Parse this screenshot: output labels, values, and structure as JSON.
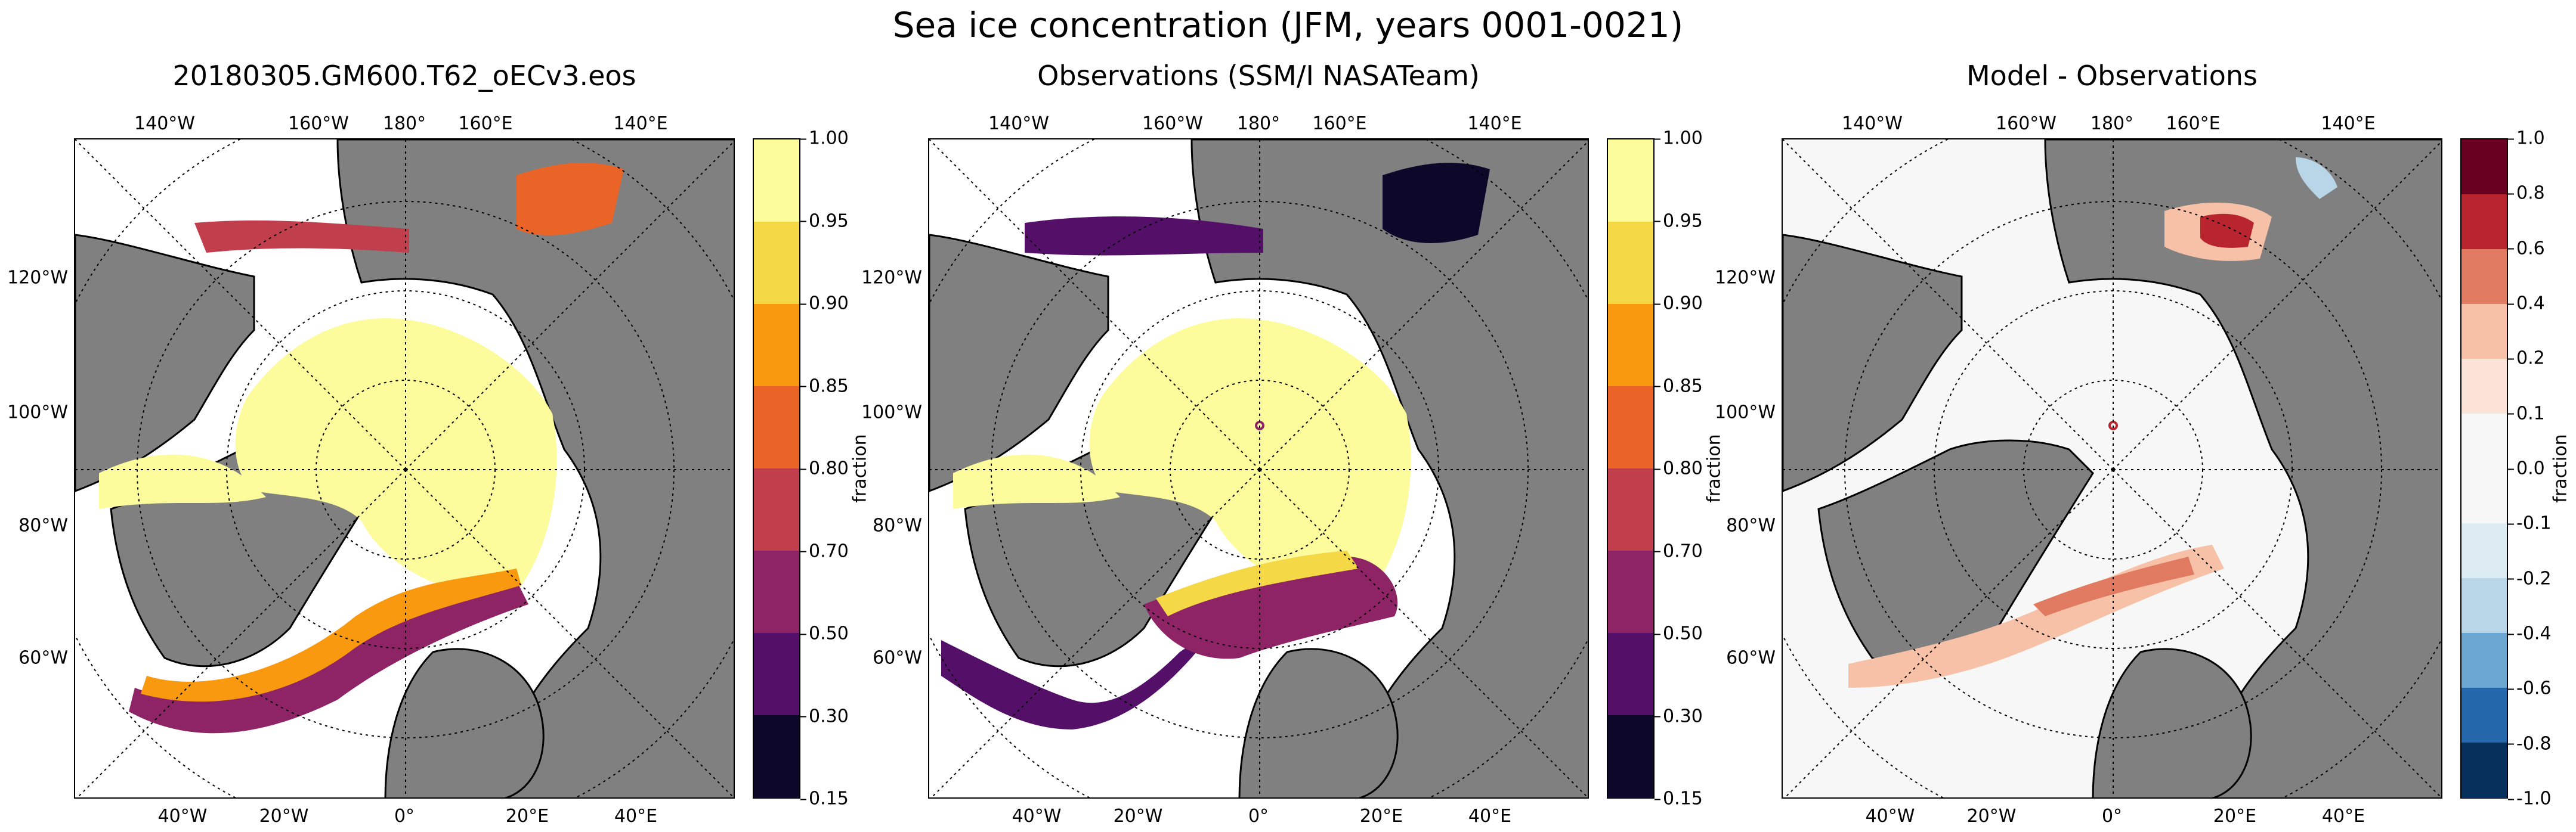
{
  "title": "Sea ice concentration (JFM, years 0001-0021)",
  "panels": [
    {
      "title": "20180305.GM600.T62_oECv3.eos",
      "colorbar_label": "fraction",
      "ticks": [
        "1.00",
        "0.95",
        "0.90",
        "0.85",
        "0.80",
        "0.70",
        "0.50",
        "0.30",
        "0.15"
      ],
      "colors": [
        "#fcfc9d",
        "#f4d846",
        "#f89910",
        "#ea6428",
        "#c13e4c",
        "#8e2365",
        "#541068",
        "#0d0829"
      ]
    },
    {
      "title": "Observations (SSM/I NASATeam)",
      "colorbar_label": "fraction",
      "ticks": [
        "1.00",
        "0.95",
        "0.90",
        "0.85",
        "0.80",
        "0.70",
        "0.50",
        "0.30",
        "0.15"
      ],
      "colors": [
        "#fcfc9d",
        "#f4d846",
        "#f89910",
        "#ea6428",
        "#c13e4c",
        "#8e2365",
        "#541068",
        "#0d0829"
      ]
    },
    {
      "title": "Model - Observations",
      "colorbar_label": "fraction",
      "ticks": [
        "1.0",
        "0.8",
        "0.6",
        "0.4",
        "0.2",
        "0.1",
        "0.0",
        "-0.1",
        "-0.2",
        "-0.4",
        "-0.6",
        "-0.8",
        "-1.0"
      ],
      "colors": [
        "#6a0020",
        "#b8252e",
        "#e07a61",
        "#f6c1a6",
        "#fce3d7",
        "#f7f7f7",
        "#f7f7f7",
        "#ddebf2",
        "#b8d6e8",
        "#6aa6cf",
        "#2467ab",
        "#08305c"
      ]
    }
  ],
  "lon_labels_top": [
    "140°W",
    "160°W",
    "180°",
    "160°E",
    "140°E"
  ],
  "lon_labels_bottom": [
    "40°W",
    "20°W",
    "0°",
    "20°E",
    "40°E"
  ],
  "lat_labels_left": [
    "120°W",
    "100°W",
    "80°W",
    "60°W"
  ],
  "colors": {
    "land": "#808080",
    "ocean": "#ffffff"
  }
}
